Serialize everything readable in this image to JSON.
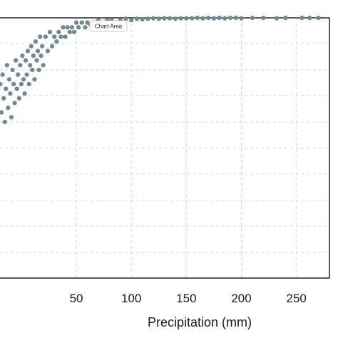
{
  "chart_data": {
    "type": "scatter",
    "title": "",
    "xlabel": "Precipitation (mm)",
    "ylabel": "",
    "xlim": [
      -20,
      280
    ],
    "x_ticks": [
      50,
      100,
      150,
      200,
      250
    ],
    "grid": true,
    "grid_style": "dashed",
    "marker_color": "#6b86b0",
    "marker_edge_color": "#7d8f57",
    "series": [
      {
        "values": [
          [
            -19,
            0.86
          ],
          [
            -18,
            0.8
          ],
          [
            -17,
            0.88
          ],
          [
            -16,
            0.83
          ],
          [
            -15,
            0.78
          ],
          [
            -14,
            0.85
          ],
          [
            -13,
            0.9
          ],
          [
            -12,
            0.81
          ],
          [
            -11,
            0.87
          ],
          [
            -10,
            0.84
          ],
          [
            -9,
            0.79
          ],
          [
            -8,
            0.89
          ],
          [
            -7,
            0.86
          ],
          [
            -6,
            0.82
          ],
          [
            -5,
            0.91
          ],
          [
            -4,
            0.85
          ],
          [
            -3,
            0.88
          ],
          [
            -2,
            0.83
          ],
          [
            -1,
            0.9
          ],
          [
            0,
            0.86
          ],
          [
            1,
            0.92
          ],
          [
            2,
            0.87
          ],
          [
            3,
            0.84
          ],
          [
            4,
            0.91
          ],
          [
            5,
            0.88
          ],
          [
            6,
            0.93
          ],
          [
            7,
            0.86
          ],
          [
            8,
            0.9
          ],
          [
            9,
            0.94
          ],
          [
            10,
            0.89
          ],
          [
            11,
            0.92
          ],
          [
            12,
            0.87
          ],
          [
            13,
            0.95
          ],
          [
            14,
            0.91
          ],
          [
            15,
            0.93
          ],
          [
            16,
            0.89
          ],
          [
            17,
            0.96
          ],
          [
            18,
            0.92
          ],
          [
            19,
            0.94
          ],
          [
            20,
            0.9
          ],
          [
            22,
            0.96
          ],
          [
            24,
            0.93
          ],
          [
            26,
            0.97
          ],
          [
            28,
            0.94
          ],
          [
            30,
            0.96
          ],
          [
            32,
            0.95
          ],
          [
            34,
            0.97
          ],
          [
            36,
            0.96
          ],
          [
            38,
            0.98
          ],
          [
            40,
            0.96
          ],
          [
            42,
            0.98
          ],
          [
            44,
            0.97
          ],
          [
            46,
            0.98
          ],
          [
            48,
            0.97
          ],
          [
            50,
            0.99
          ],
          [
            52,
            0.98
          ],
          [
            55,
            0.99
          ],
          [
            58,
            0.98
          ],
          [
            60,
            0.99
          ],
          [
            63,
            0.985
          ],
          [
            66,
            0.99
          ],
          [
            70,
            0.995
          ],
          [
            74,
            0.99
          ],
          [
            78,
            0.995
          ],
          [
            82,
            0.995
          ],
          [
            86,
            0.99
          ],
          [
            90,
            0.995
          ],
          [
            95,
            0.998
          ],
          [
            100,
            0.995
          ],
          [
            105,
            0.998
          ],
          [
            110,
            0.997
          ],
          [
            115,
            0.998
          ],
          [
            120,
            0.999
          ],
          [
            125,
            0.998
          ],
          [
            130,
            0.999
          ],
          [
            135,
            0.999
          ],
          [
            140,
            0.998
          ],
          [
            145,
            0.999
          ],
          [
            150,
            0.999
          ],
          [
            155,
            0.999
          ],
          [
            160,
            1.0
          ],
          [
            165,
            0.999
          ],
          [
            170,
            1.0
          ],
          [
            175,
            0.999
          ],
          [
            180,
            1.0
          ],
          [
            185,
            0.999
          ],
          [
            190,
            1.0
          ],
          [
            195,
            1.0
          ],
          [
            200,
            0.999
          ],
          [
            210,
            1.0
          ],
          [
            220,
            1.0
          ],
          [
            232,
            0.999
          ],
          [
            240,
            1.0
          ],
          [
            255,
            1.0
          ],
          [
            262,
            1.0
          ],
          [
            270,
            1.0
          ]
        ]
      }
    ]
  },
  "tooltip": {
    "label": "Chart Area"
  }
}
